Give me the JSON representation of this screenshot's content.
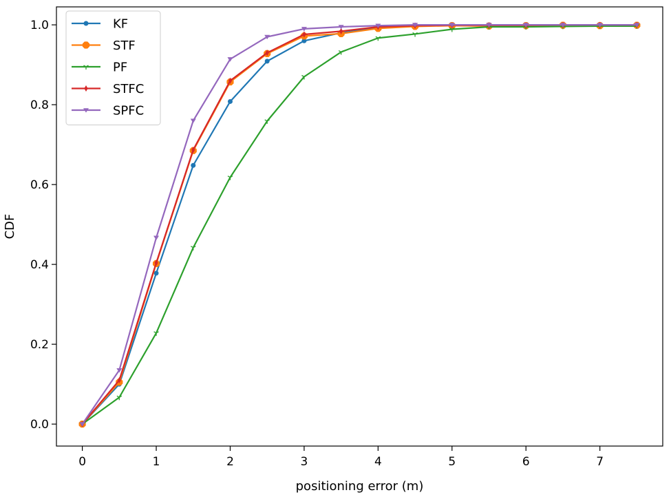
{
  "chart_data": {
    "type": "line",
    "title": "",
    "xlabel": "positioning error (m)",
    "ylabel": "CDF",
    "xlim": [
      -0.35,
      7.85
    ],
    "ylim": [
      -0.055,
      1.045
    ],
    "xticks": [
      0,
      1,
      2,
      3,
      4,
      5,
      6,
      7
    ],
    "xtick_labels": [
      "0",
      "1",
      "2",
      "3",
      "4",
      "5",
      "6",
      "7"
    ],
    "yticks": [
      0.0,
      0.2,
      0.4,
      0.6,
      0.8,
      1.0
    ],
    "ytick_labels": [
      "0.0",
      "0.2",
      "0.4",
      "0.6",
      "0.8",
      "1.0"
    ],
    "grid": false,
    "legend_position": "top-left",
    "x": [
      0,
      0.5,
      1,
      1.5,
      2,
      2.5,
      3,
      3.5,
      4,
      4.5,
      5,
      5.5,
      6,
      6.5,
      7,
      7.5
    ],
    "series": [
      {
        "name": "KF",
        "color": "#1f77b4",
        "marker": "dot",
        "values": [
          0.0,
          0.1,
          0.378,
          0.648,
          0.808,
          0.909,
          0.96,
          0.98,
          0.993,
          0.998,
          1.0,
          1.0,
          1.0,
          1.0,
          1.0,
          1.0
        ]
      },
      {
        "name": "STF",
        "color": "#ff7f0e",
        "marker": "octagon",
        "values": [
          0.0,
          0.105,
          0.402,
          0.685,
          0.857,
          0.928,
          0.972,
          0.978,
          0.991,
          0.996,
          0.998,
          0.997,
          0.998,
          0.999,
          0.998,
          0.999
        ]
      },
      {
        "name": "PF",
        "color": "#2ca02c",
        "marker": "tri_down",
        "values": [
          0.0,
          0.067,
          0.228,
          0.442,
          0.618,
          0.759,
          0.87,
          0.932,
          0.967,
          0.977,
          0.989,
          0.995,
          0.995,
          0.996,
          0.997,
          0.997
        ]
      },
      {
        "name": "STFC",
        "color": "#d62728",
        "marker": "thin_diamond",
        "values": [
          0.0,
          0.11,
          0.404,
          0.687,
          0.86,
          0.93,
          0.976,
          0.984,
          0.995,
          0.998,
          0.999,
          0.999,
          0.999,
          1.0,
          1.0,
          1.0
        ]
      },
      {
        "name": "SPFC",
        "color": "#9467bd",
        "marker": "triangle_down",
        "values": [
          0.0,
          0.135,
          0.467,
          0.76,
          0.914,
          0.97,
          0.99,
          0.995,
          0.998,
          1.0,
          1.0,
          1.0,
          1.0,
          1.0,
          1.0,
          1.0
        ]
      }
    ]
  }
}
